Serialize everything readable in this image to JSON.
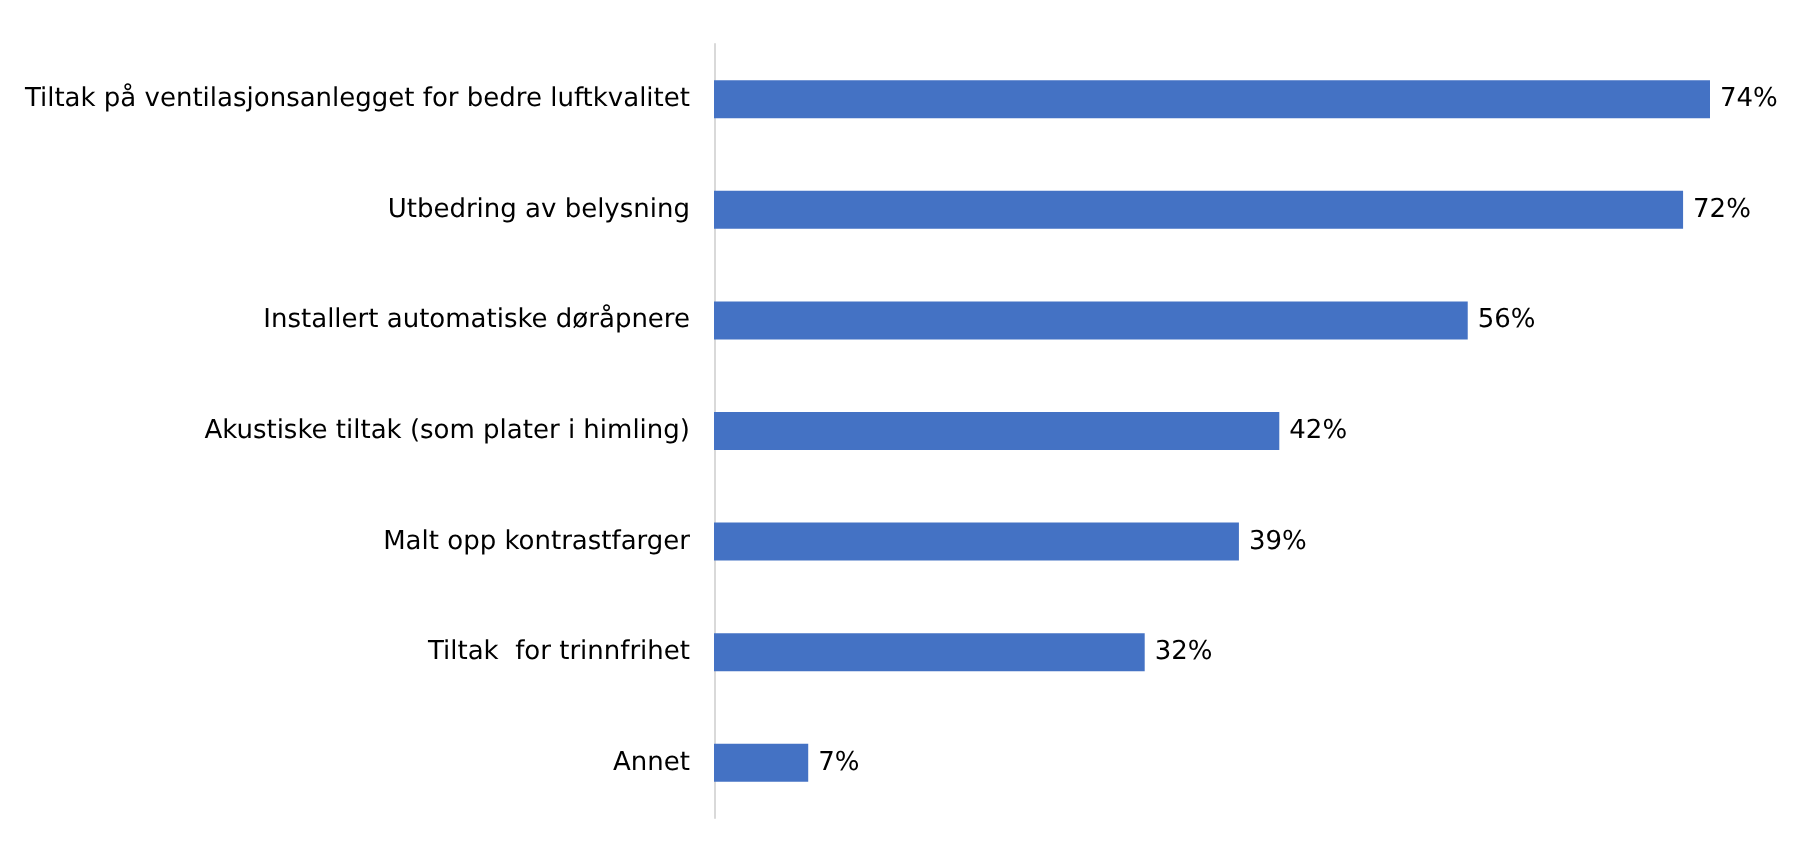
{
  "chart_data": {
    "type": "bar",
    "orientation": "horizontal",
    "categories": [
      "Tiltak på ventilasjonsanlegget for bedre luftkvalitet",
      "Utbedring av belysning",
      "Installert automatiske døråpnere",
      "Akustiske tiltak (som plater i himling)",
      "Malt opp kontrastfarger",
      "Tiltak  for trinnfrihet",
      "Annet"
    ],
    "values": [
      74,
      72,
      56,
      42,
      39,
      32,
      7
    ],
    "value_labels": [
      "74%",
      "72%",
      "56%",
      "42%",
      "39%",
      "32%",
      "7%"
    ],
    "color": "#4472c4"
  }
}
